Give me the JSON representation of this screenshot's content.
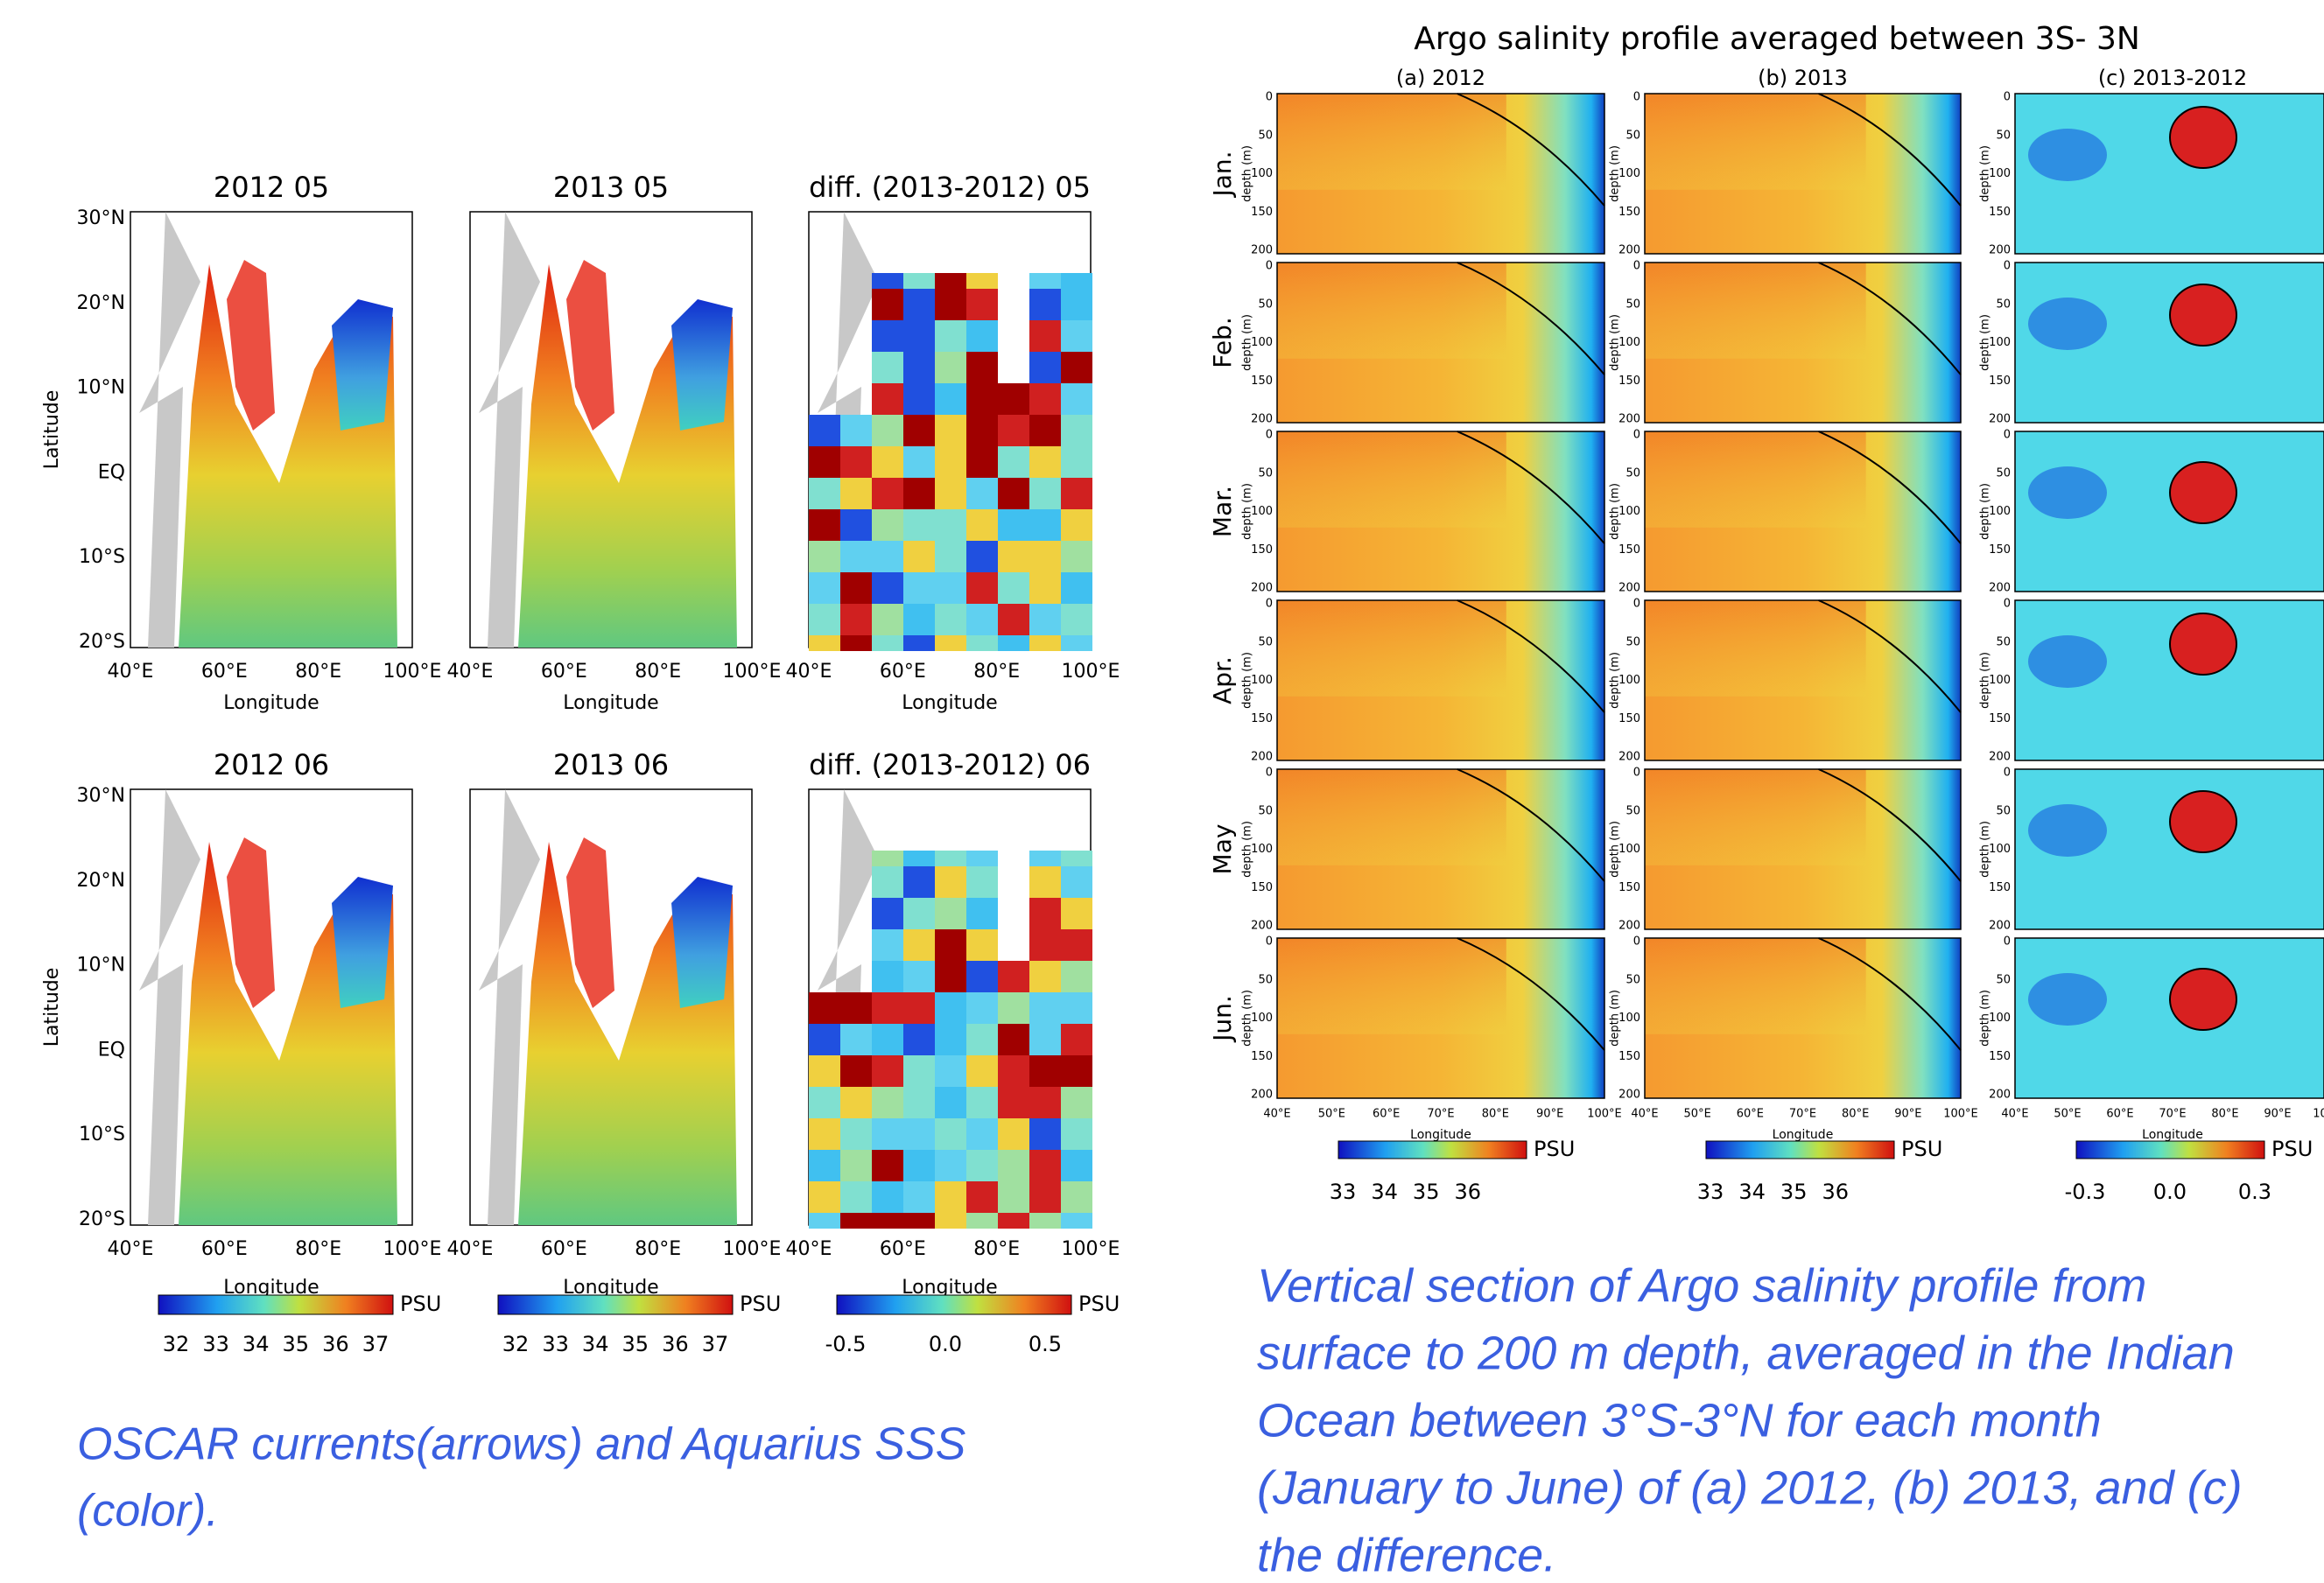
{
  "left": {
    "panels": [
      {
        "title": "2012 05"
      },
      {
        "title": "2013 05"
      },
      {
        "title": "diff. (2013-2012) 05"
      },
      {
        "title": "2012 06"
      },
      {
        "title": "2013 06"
      },
      {
        "title": "diff. (2013-2012) 06"
      }
    ],
    "y_ticks": [
      "30°N",
      "20°N",
      "10°N",
      "EQ",
      "10°S",
      "20°S"
    ],
    "x_ticks": [
      "40°E",
      "60°E",
      "80°E",
      "100°E"
    ],
    "x_label": "Longitude",
    "y_label": "Latitude",
    "colorbars": [
      {
        "unit": "PSU",
        "ticks": [
          "32",
          "33",
          "34",
          "35",
          "36",
          "37"
        ]
      },
      {
        "unit": "PSU",
        "ticks": [
          "32",
          "33",
          "34",
          "35",
          "36",
          "37"
        ]
      },
      {
        "unit": "PSU",
        "ticks": [
          "-0.5",
          "0.0",
          "0.5"
        ]
      }
    ],
    "caption": [
      "OSCAR currents(arrows) and Aquarius SSS",
      "(color)."
    ]
  },
  "right": {
    "title": "Argo salinity profile averaged between  3S- 3N",
    "columns": [
      "(a) 2012",
      "(b) 2013",
      "(c) 2013-2012"
    ],
    "months": [
      "Jan.",
      "Feb.",
      "Mar.",
      "Apr.",
      "May",
      "Jun."
    ],
    "y_ticks": [
      "0",
      "50",
      "100",
      "150",
      "200"
    ],
    "y_label": "depth (m)",
    "x_ticks": [
      "40°E",
      "50°E",
      "60°E",
      "70°E",
      "80°E",
      "90°E",
      "100°E"
    ],
    "x_label": "Longitude",
    "colorbars": [
      {
        "unit": "PSU",
        "ticks": [
          "33",
          "34",
          "35",
          "36"
        ]
      },
      {
        "unit": "PSU",
        "ticks": [
          "33",
          "34",
          "35",
          "36"
        ]
      },
      {
        "unit": "PSU",
        "ticks": [
          "-0.3",
          "0.0",
          "0.3"
        ]
      }
    ],
    "caption": [
      "Vertical section of Argo salinity profile from",
      "surface to 200 m depth, averaged in the Indian",
      "Ocean between 3°S-3°N for each month",
      "(January to June) of (a) 2012, (b) 2013, and (c)",
      "the difference."
    ]
  }
}
